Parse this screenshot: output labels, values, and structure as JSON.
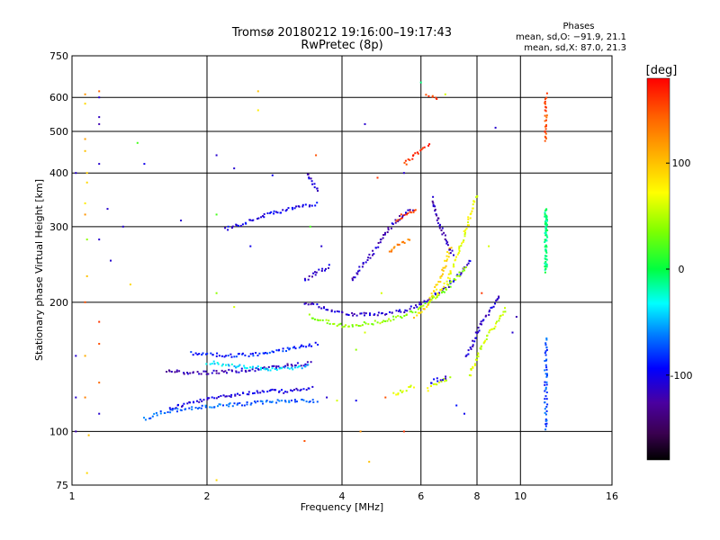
{
  "chart_data": {
    "type": "scatter",
    "title": "Tromsø 20180212 19:16:00–19:17:43",
    "subtitle": "RwPretec (8p)",
    "xlabel": "Frequency [MHz]",
    "ylabel": "Stationary phase Virtual Height [km]",
    "x_scale": "log",
    "y_scale": "log",
    "xlim": [
      1,
      16
    ],
    "ylim": [
      75,
      750
    ],
    "x_ticks": [
      1,
      2,
      4,
      6,
      8,
      10,
      16
    ],
    "y_ticks": [
      75,
      100,
      200,
      300,
      400,
      500,
      600,
      750
    ],
    "grid": true,
    "legend": {
      "title": "Phases",
      "line1": "mean, sd,O:  −91.9, 21.1",
      "line2": "mean, sd,X:  87.0, 21.3"
    },
    "colorbar": {
      "label": "[deg]",
      "range": [
        -180,
        180
      ],
      "ticks": [
        100,
        0,
        -100
      ],
      "colormap": "rainbow"
    },
    "traces": [
      {
        "f": [
          1.65,
          1.8,
          1.95,
          2.1,
          2.3,
          2.5,
          2.75,
          3.0,
          3.25,
          3.45
        ],
        "h": [
          113,
          116,
          118,
          120,
          122,
          123,
          124,
          124,
          125,
          126
        ],
        "phase": -105
      },
      {
        "f": [
          1.45,
          1.6,
          1.8,
          2.0,
          2.2,
          2.45,
          2.7,
          3.0,
          3.3,
          3.55
        ],
        "h": [
          107,
          111,
          113,
          114,
          115,
          116,
          117,
          118,
          118,
          118
        ],
        "phase": -70
      },
      {
        "f": [
          1.62,
          1.8,
          2.0,
          2.2,
          2.45,
          2.7,
          2.95,
          3.2,
          3.45
        ],
        "h": [
          138,
          137,
          137,
          138,
          139,
          140,
          142,
          143,
          144
        ],
        "phase": -118
      },
      {
        "f": [
          1.85,
          2.05,
          2.3,
          2.55,
          2.8,
          3.05,
          3.3,
          3.55
        ],
        "h": [
          152,
          151,
          150,
          151,
          153,
          156,
          158,
          160
        ],
        "phase": -85
      },
      {
        "f": [
          2.0,
          2.2,
          2.45,
          2.7,
          2.95,
          3.2,
          3.4
        ],
        "h": [
          145,
          143,
          141,
          140,
          140,
          141,
          142
        ],
        "phase": -40
      },
      {
        "f": [
          3.3,
          3.5,
          3.7,
          3.9,
          4.2,
          4.6,
          5.1,
          5.6,
          6.1,
          6.6,
          7.0,
          7.4,
          7.8
        ],
        "h": [
          200,
          197,
          193,
          190,
          188,
          187,
          188,
          192,
          200,
          210,
          222,
          236,
          252
        ],
        "phase": -110
      },
      {
        "f": [
          3.4,
          3.7,
          4.0,
          4.5,
          5.0,
          5.5,
          6.0,
          6.4,
          6.8,
          7.2,
          7.6
        ],
        "h": [
          186,
          180,
          176,
          178,
          181,
          186,
          194,
          203,
          214,
          228,
          244
        ],
        "phase": 40
      },
      {
        "f": [
          3.3,
          3.5,
          3.7,
          3.8
        ],
        "h": [
          225,
          235,
          240,
          245
        ],
        "phase": -110
      },
      {
        "f": [
          2.2,
          2.4,
          2.6,
          2.8,
          3.0,
          3.2,
          3.4,
          3.55
        ],
        "h": [
          295,
          305,
          315,
          322,
          328,
          333,
          338,
          340
        ],
        "phase": -100
      },
      {
        "f": [
          4.2,
          4.4,
          4.6,
          4.8,
          5.0,
          5.2,
          5.5,
          5.8
        ],
        "h": [
          225,
          240,
          255,
          270,
          290,
          305,
          320,
          330
        ],
        "phase": -115
      },
      {
        "f": [
          5.3,
          5.5,
          5.7,
          5.9
        ],
        "h": [
          310,
          320,
          325,
          330
        ],
        "phase": 160
      },
      {
        "f": [
          5.1,
          5.3,
          5.5,
          5.7
        ],
        "h": [
          260,
          270,
          275,
          280
        ],
        "phase": 130
      },
      {
        "f": [
          5.8,
          6.0,
          6.2,
          6.4,
          6.6,
          6.8,
          7.0
        ],
        "h": [
          185,
          190,
          198,
          210,
          225,
          245,
          270
        ],
        "phase": 90
      },
      {
        "f": [
          6.4,
          6.6,
          6.8,
          7.0,
          7.2,
          7.4,
          7.6,
          7.8,
          8.0
        ],
        "h": [
          205,
          210,
          220,
          235,
          255,
          275,
          300,
          330,
          360
        ],
        "phase": 70
      },
      {
        "f": [
          6.4,
          6.5,
          6.7,
          6.9,
          7.1
        ],
        "h": [
          350,
          320,
          290,
          270,
          255
        ],
        "phase": -120
      },
      {
        "f": [
          7.7,
          7.9,
          8.1,
          8.4,
          8.7,
          9.0,
          9.3
        ],
        "h": [
          135,
          145,
          155,
          165,
          175,
          185,
          195
        ],
        "phase": 60
      },
      {
        "f": [
          7.6,
          7.8,
          8.0,
          8.2,
          8.5,
          8.8,
          9.0
        ],
        "h": [
          150,
          160,
          170,
          180,
          190,
          200,
          210
        ],
        "phase": -110
      },
      {
        "f": [
          6.2,
          6.4,
          6.6,
          6.8,
          7.0
        ],
        "h": [
          125,
          128,
          130,
          132,
          134
        ],
        "phase": 60
      },
      {
        "f": [
          6.3,
          6.5,
          6.7,
          6.9
        ],
        "h": [
          130,
          132,
          133,
          135
        ],
        "phase": -105
      },
      {
        "f": [
          5.2,
          5.4,
          5.6,
          5.8
        ],
        "h": [
          122,
          124,
          126,
          128
        ],
        "phase": 65
      },
      {
        "f": [
          11.4,
          11.4,
          11.4,
          11.4,
          11.4,
          11.4,
          11.4
        ],
        "h": [
          300,
          330,
          270,
          250,
          235,
          320,
          310
        ],
        "phase": -10
      },
      {
        "f": [
          11.4,
          11.4,
          11.4,
          11.4,
          11.4,
          11.4,
          11.4
        ],
        "h": [
          165,
          150,
          140,
          130,
          120,
          110,
          100
        ],
        "phase": -75
      },
      {
        "f": [
          11.4,
          11.4,
          11.4,
          11.4,
          11.4
        ],
        "h": [
          610,
          560,
          500,
          480,
          470
        ],
        "phase": 150
      },
      {
        "f": [
          3.35,
          3.45,
          3.55
        ],
        "h": [
          400,
          380,
          360
        ],
        "phase": -110
      },
      {
        "f": [
          6.2,
          6.4,
          6.6
        ],
        "h": [
          610,
          600,
          600
        ],
        "phase": 155
      },
      {
        "f": [
          5.5,
          5.8,
          6.0,
          6.3
        ],
        "h": [
          420,
          440,
          450,
          470
        ],
        "phase": 160
      }
    ],
    "points": [
      {
        "f": 1.07,
        "h": 610,
        "phase": 120
      },
      {
        "f": 1.07,
        "h": 580,
        "phase": 90
      },
      {
        "f": 1.15,
        "h": 620,
        "phase": 140
      },
      {
        "f": 1.15,
        "h": 600,
        "phase": -110
      },
      {
        "f": 1.15,
        "h": 540,
        "phase": -115
      },
      {
        "f": 1.15,
        "h": 520,
        "phase": -120
      },
      {
        "f": 1.07,
        "h": 480,
        "phase": 115
      },
      {
        "f": 1.07,
        "h": 450,
        "phase": 100
      },
      {
        "f": 1.08,
        "h": 400,
        "phase": 95
      },
      {
        "f": 1.08,
        "h": 380,
        "phase": 90
      },
      {
        "f": 1.07,
        "h": 340,
        "phase": 80
      },
      {
        "f": 1.07,
        "h": 320,
        "phase": 120
      },
      {
        "f": 1.08,
        "h": 280,
        "phase": 40
      },
      {
        "f": 1.08,
        "h": 230,
        "phase": 100
      },
      {
        "f": 1.07,
        "h": 200,
        "phase": 150
      },
      {
        "f": 1.07,
        "h": 150,
        "phase": 110
      },
      {
        "f": 1.07,
        "h": 120,
        "phase": 130
      },
      {
        "f": 1.09,
        "h": 98,
        "phase": 100
      },
      {
        "f": 1.08,
        "h": 80,
        "phase": 90
      },
      {
        "f": 1.02,
        "h": 400,
        "phase": -110
      },
      {
        "f": 1.15,
        "h": 420,
        "phase": -110
      },
      {
        "f": 1.15,
        "h": 280,
        "phase": -110
      },
      {
        "f": 1.2,
        "h": 330,
        "phase": -110
      },
      {
        "f": 1.22,
        "h": 250,
        "phase": -110
      },
      {
        "f": 1.3,
        "h": 300,
        "phase": -110
      },
      {
        "f": 1.35,
        "h": 220,
        "phase": 90
      },
      {
        "f": 1.4,
        "h": 470,
        "phase": 20
      },
      {
        "f": 1.45,
        "h": 420,
        "phase": -100
      },
      {
        "f": 1.75,
        "h": 310,
        "phase": -110
      },
      {
        "f": 1.15,
        "h": 180,
        "phase": 160
      },
      {
        "f": 1.15,
        "h": 160,
        "phase": 150
      },
      {
        "f": 1.15,
        "h": 130,
        "phase": 140
      },
      {
        "f": 1.15,
        "h": 110,
        "phase": -110
      },
      {
        "f": 1.02,
        "h": 120,
        "phase": -110
      },
      {
        "f": 1.02,
        "h": 100,
        "phase": -120
      },
      {
        "f": 1.02,
        "h": 150,
        "phase": -110
      },
      {
        "f": 2.6,
        "h": 620,
        "phase": 100
      },
      {
        "f": 2.6,
        "h": 560,
        "phase": 80
      },
      {
        "f": 2.1,
        "h": 440,
        "phase": -110
      },
      {
        "f": 2.3,
        "h": 410,
        "phase": -110
      },
      {
        "f": 2.8,
        "h": 395,
        "phase": -100
      },
      {
        "f": 2.1,
        "h": 320,
        "phase": 20
      },
      {
        "f": 2.5,
        "h": 270,
        "phase": -100
      },
      {
        "f": 2.1,
        "h": 210,
        "phase": 40
      },
      {
        "f": 2.3,
        "h": 195,
        "phase": 60
      },
      {
        "f": 4.5,
        "h": 520,
        "phase": -110
      },
      {
        "f": 6.0,
        "h": 650,
        "phase": -10
      },
      {
        "f": 6.8,
        "h": 610,
        "phase": 60
      },
      {
        "f": 8.8,
        "h": 510,
        "phase": -110
      },
      {
        "f": 4.4,
        "h": 100,
        "phase": 120
      },
      {
        "f": 4.6,
        "h": 85,
        "phase": 100
      },
      {
        "f": 2.1,
        "h": 77,
        "phase": 90
      },
      {
        "f": 3.3,
        "h": 95,
        "phase": 150
      },
      {
        "f": 4.5,
        "h": 170,
        "phase": 60
      },
      {
        "f": 4.3,
        "h": 155,
        "phase": 40
      },
      {
        "f": 3.7,
        "h": 120,
        "phase": -110
      },
      {
        "f": 3.9,
        "h": 118,
        "phase": 60
      },
      {
        "f": 4.3,
        "h": 118,
        "phase": -100
      },
      {
        "f": 5.0,
        "h": 120,
        "phase": 150
      },
      {
        "f": 7.2,
        "h": 115,
        "phase": -90
      },
      {
        "f": 7.5,
        "h": 110,
        "phase": -100
      },
      {
        "f": 9.8,
        "h": 185,
        "phase": -120
      },
      {
        "f": 9.6,
        "h": 170,
        "phase": -110
      },
      {
        "f": 8.2,
        "h": 210,
        "phase": 160
      },
      {
        "f": 8.5,
        "h": 270,
        "phase": 60
      },
      {
        "f": 5.5,
        "h": 400,
        "phase": -110
      },
      {
        "f": 4.8,
        "h": 390,
        "phase": 160
      },
      {
        "f": 3.5,
        "h": 440,
        "phase": 150
      },
      {
        "f": 4.9,
        "h": 210,
        "phase": 60
      },
      {
        "f": 3.4,
        "h": 300,
        "phase": 20
      },
      {
        "f": 3.6,
        "h": 270,
        "phase": -110
      },
      {
        "f": 5.5,
        "h": 100,
        "phase": 160
      }
    ]
  }
}
